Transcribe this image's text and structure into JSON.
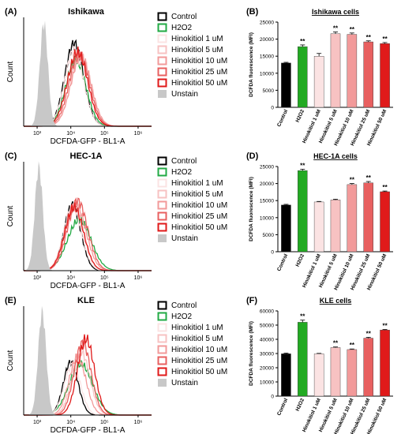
{
  "chart_data": [
    {
      "panel": "(A)",
      "type": "histogram-overlay",
      "title": "Ishikawa",
      "xlabel": "DCFDA-GFP - BL1-A",
      "ylabel": "Count",
      "xticks": [
        "10³",
        "10⁴",
        "10⁵",
        "10⁶"
      ],
      "legend": [
        "Control",
        "H2O2",
        "Hinokitiol 1 uM",
        "Hinokitiol 5 uM",
        "Hinokitiol 10 uM",
        "Hinokitiol 25 uM",
        "Hinokitiol 50 uM",
        "Unstain"
      ],
      "legend_colors": [
        "#000000",
        "#22aa44",
        "#fbe3e3",
        "#f7c2c2",
        "#f29a9a",
        "#e86060",
        "#e01a1a",
        "#c8c8c8"
      ],
      "series_centers_log10": [
        4.1,
        4.15,
        4.1,
        4.3,
        4.3,
        4.25,
        4.2,
        3.2
      ],
      "series_widths": [
        0.28,
        0.3,
        0.28,
        0.3,
        0.3,
        0.3,
        0.3,
        0.12
      ],
      "series_heights": [
        0.78,
        0.62,
        0.72,
        0.66,
        0.66,
        0.68,
        0.7,
        0.98
      ]
    },
    {
      "panel": "(B)",
      "type": "bar",
      "title": "Ishikawa cells",
      "ylabel": "DCFDA fluorescence (MFI)",
      "ylim": [
        0,
        25000
      ],
      "yticks": [
        "0",
        "5000",
        "10000",
        "15000",
        "20000",
        "25000"
      ],
      "categories": [
        "Control",
        "H2O2",
        "Hinokitiol 1 uM",
        "Hinokitiol 5 uM",
        "Hinokitiol 10 uM",
        "Hinokitiol 25 uM",
        "Hinokitiol 50 uM"
      ],
      "values": [
        13000,
        17800,
        15000,
        21600,
        21400,
        19200,
        18700
      ],
      "errors": [
        200,
        500,
        800,
        500,
        400,
        300,
        300
      ],
      "annotations": [
        "",
        "**",
        "",
        "**",
        "**",
        "**",
        "**"
      ],
      "colors": [
        "#000000",
        "#22aa22",
        "#fbe3e3",
        "#f7c2c2",
        "#f29a9a",
        "#e86060",
        "#e01a1a"
      ]
    },
    {
      "panel": "(C)",
      "type": "histogram-overlay",
      "title": "HEC-1A",
      "xlabel": "DCFDA-GFP - BL1-A",
      "ylabel": "Count",
      "xticks": [
        "10³",
        "10⁴",
        "10⁵",
        "10⁶"
      ],
      "legend": [
        "Control",
        "H2O2",
        "Hinokitiol 1 uM",
        "Hinokitiol 5 uM",
        "Hinokitiol 10 uM",
        "Hinokitiol 25 uM",
        "Hinokitiol 50 uM",
        "Unstain"
      ],
      "legend_colors": [
        "#000000",
        "#22aa44",
        "#fbe3e3",
        "#f7c2c2",
        "#f29a9a",
        "#e86060",
        "#e01a1a",
        "#c8c8c8"
      ],
      "series_centers_log10": [
        4.05,
        4.25,
        4.05,
        4.1,
        4.15,
        4.2,
        4.1,
        3.05
      ],
      "series_widths": [
        0.25,
        0.35,
        0.27,
        0.28,
        0.3,
        0.3,
        0.28,
        0.12
      ],
      "series_heights": [
        0.62,
        0.48,
        0.6,
        0.6,
        0.62,
        0.66,
        0.6,
        0.98
      ]
    },
    {
      "panel": "(D)",
      "type": "bar",
      "title": "HEC-1A cells",
      "ylabel": "DCFDA fluorescence (MFI)",
      "ylim": [
        0,
        25000
      ],
      "yticks": [
        "0",
        "5000",
        "10000",
        "15000",
        "20000",
        "25000"
      ],
      "categories": [
        "Control",
        "H2O2",
        "Hinokitiol 1 uM",
        "Hinokitiol 5 uM",
        "Hinokitiol 10 uM",
        "Hinokitiol 25 uM",
        "Hinokitiol 50 uM"
      ],
      "values": [
        13700,
        23800,
        14600,
        15200,
        19700,
        20200,
        17600
      ],
      "errors": [
        200,
        400,
        150,
        200,
        300,
        400,
        200
      ],
      "annotations": [
        "",
        "**",
        "",
        "",
        "**",
        "**",
        "**"
      ],
      "colors": [
        "#000000",
        "#22aa22",
        "#fbe3e3",
        "#f7c2c2",
        "#f29a9a",
        "#e86060",
        "#e01a1a"
      ]
    },
    {
      "panel": "(E)",
      "type": "histogram-overlay",
      "title": "KLE",
      "xlabel": "DCFDA-GFP - BL1-A",
      "ylabel": "Count",
      "xticks": [
        "10³",
        "10⁴",
        "10⁵",
        "10⁶"
      ],
      "legend": [
        "Control",
        "H2O2",
        "Hinokitiol 1 uM",
        "Hinokitiol 5 uM",
        "Hinokitiol 10 uM",
        "Hinokitiol 25 uM",
        "Hinokitiol 50 uM",
        "Unstain"
      ],
      "legend_colors": [
        "#000000",
        "#22aa44",
        "#fbe3e3",
        "#f7c2c2",
        "#f29a9a",
        "#e86060",
        "#e01a1a",
        "#c8c8c8"
      ],
      "series_centers_log10": [
        4.0,
        4.3,
        4.05,
        4.3,
        4.2,
        4.35,
        4.45,
        3.15
      ],
      "series_widths": [
        0.22,
        0.35,
        0.24,
        0.26,
        0.25,
        0.25,
        0.25,
        0.12
      ],
      "series_heights": [
        0.5,
        0.48,
        0.48,
        0.6,
        0.55,
        0.68,
        0.72,
        0.98
      ]
    },
    {
      "panel": "(F)",
      "type": "bar",
      "title": "KLE cells",
      "ylabel": "DCFDA fluorescence (MFI)",
      "ylim": [
        0,
        60000
      ],
      "yticks": [
        "0",
        "10000",
        "20000",
        "30000",
        "40000",
        "50000",
        "60000"
      ],
      "categories": [
        "Control",
        "H2O2",
        "Hinokitiol 1 uM",
        "Hinokitiol 5 uM",
        "Hinokitiol 10 uM",
        "Hinokitiol 25 uM",
        "Hinokitiol 50 uM"
      ],
      "values": [
        29800,
        52000,
        29800,
        34200,
        32800,
        40800,
        46500
      ],
      "errors": [
        500,
        1500,
        300,
        400,
        400,
        600,
        400
      ],
      "annotations": [
        "",
        "**",
        "",
        "**",
        "**",
        "**",
        "**"
      ],
      "colors": [
        "#000000",
        "#22aa22",
        "#fbe3e3",
        "#f7c2c2",
        "#f29a9a",
        "#e86060",
        "#e01a1a"
      ]
    }
  ]
}
